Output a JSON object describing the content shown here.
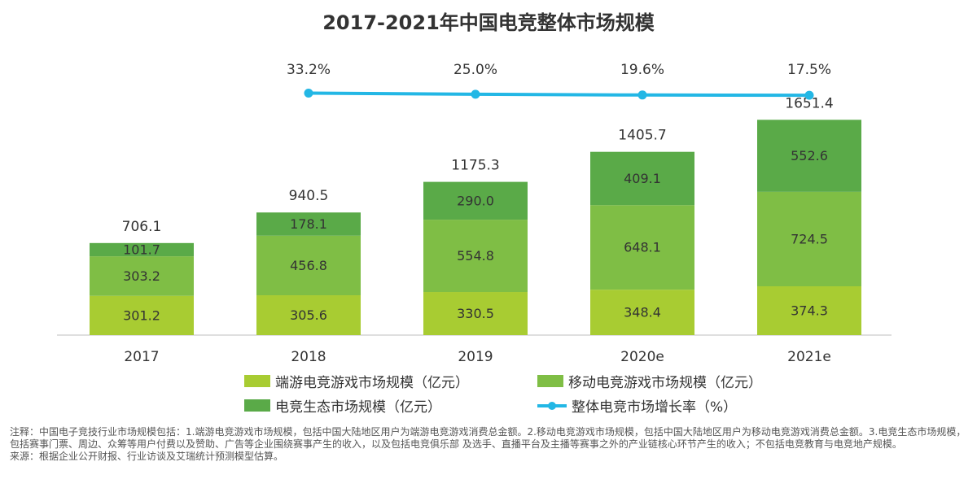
{
  "title": "2017-2021年中国电竞整体市场规模",
  "colors": {
    "pc": "#a8cc32",
    "mobile": "#7fbe45",
    "eco": "#5aaa48",
    "growth": "#23b7e5"
  },
  "chart_data": {
    "type": "bar",
    "stacked": true,
    "categories": [
      "2017",
      "2018",
      "2019",
      "2020e",
      "2021e"
    ],
    "series": [
      {
        "name": "端游电竞游戏市场规模（亿元）",
        "values": [
          301.2,
          305.6,
          330.5,
          348.4,
          374.3
        ]
      },
      {
        "name": "移动电竞游戏市场规模（亿元）",
        "values": [
          303.2,
          456.8,
          554.8,
          648.1,
          724.5
        ]
      },
      {
        "name": "电竞生态市场规模（亿元）",
        "values": [
          101.7,
          178.1,
          290.0,
          409.1,
          552.6
        ]
      }
    ],
    "totals": [
      "706.1",
      "940.5",
      "1175.3",
      "1405.7",
      "1651.4"
    ],
    "value_labels": [
      [
        "301.2",
        "305.6",
        "330.5",
        "348.4",
        "374.3"
      ],
      [
        "303.2",
        "456.8",
        "554.8",
        "648.1",
        "724.5"
      ],
      [
        "101.7",
        "178.1",
        "290.0",
        "409.1",
        "552.6"
      ]
    ],
    "line_series": {
      "name": "整体电竞市场增长率（%）",
      "categories": [
        "2018",
        "2019",
        "2020e",
        "2021e"
      ],
      "values": [
        33.2,
        25.0,
        19.6,
        17.5
      ],
      "labels": [
        "33.2%",
        "25.0%",
        "19.6%",
        "17.5%"
      ]
    },
    "ylim": [
      0,
      1900
    ],
    "grid": false,
    "legend_position": "bottom"
  },
  "legend": {
    "pc": "端游电竞游戏市场规模（亿元）",
    "mobile": "移动电竞游戏市场规模（亿元）",
    "eco": "电竞生态市场规模（亿元）",
    "growth": "整体电竞市场增长率（%）"
  },
  "note": {
    "line1": "注释：中国电子竞技行业市场规模包括：1.端游电竞游戏市场规模，包括中国大陆地区用户为端游电竞游戏消费总金额。2.移动电竞游戏市场规模，包括中国大陆地区用户为移动电竞游戏消费总金额。3.电竞生态市场规模，包括赛事门票、周边、众筹等用户付费以及赞助、广告等企业围绕赛事产生的收入，以及包括电竞俱乐部 及选手、直播平台及主播等赛事之外的产业链核心环节产生的收入；不包括电竞教育与电竞地产规模。",
    "line2": "来源：根据企业公开财报、行业访谈及艾瑞统计预测模型估算。"
  }
}
